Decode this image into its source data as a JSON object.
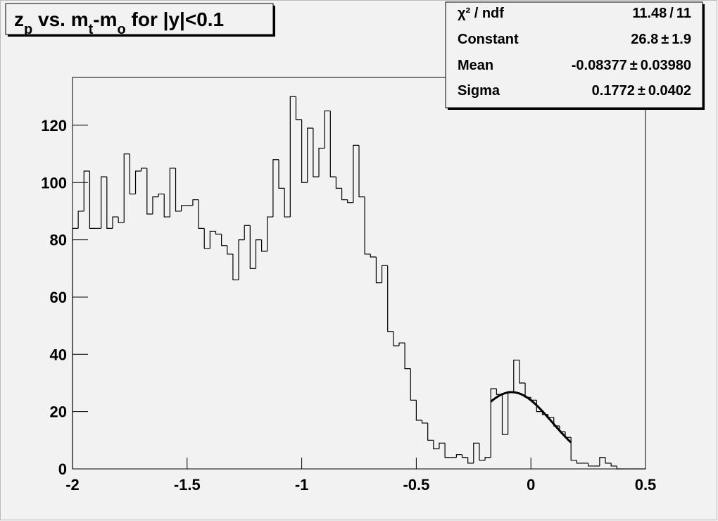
{
  "chart_data": {
    "type": "histogram",
    "title_parts": [
      {
        "text": "z"
      },
      {
        "text": "p",
        "sub": true
      },
      {
        "text": " vs. m"
      },
      {
        "text": "t",
        "sub": true
      },
      {
        "text": "-m"
      },
      {
        "text": "o",
        "sub": true
      },
      {
        "text": " for |y|<0.1"
      }
    ],
    "bins": [
      -2,
      -1.975,
      -1.95,
      -1.925,
      -1.9,
      -1.875,
      -1.85,
      -1.825,
      -1.8,
      -1.775,
      -1.75,
      -1.725,
      -1.7,
      -1.675,
      -1.65,
      -1.625,
      -1.6,
      -1.575,
      -1.55,
      -1.525,
      -1.5,
      -1.475,
      -1.45,
      -1.425,
      -1.4,
      -1.375,
      -1.35,
      -1.325,
      -1.3,
      -1.275,
      -1.25,
      -1.225,
      -1.2,
      -1.175,
      -1.15,
      -1.125,
      -1.1,
      -1.075,
      -1.05,
      -1.025,
      -1,
      -0.975,
      -0.95,
      -0.925,
      -0.9,
      -0.875,
      -0.85,
      -0.825,
      -0.8,
      -0.775,
      -0.75,
      -0.725,
      -0.7,
      -0.675,
      -0.65,
      -0.625,
      -0.6,
      -0.575,
      -0.55,
      -0.525,
      -0.5,
      -0.475,
      -0.45,
      -0.425,
      -0.4,
      -0.375,
      -0.35,
      -0.325,
      -0.3,
      -0.275,
      -0.25,
      -0.225,
      -0.2,
      -0.175,
      -0.15,
      -0.125,
      -0.1,
      -0.075,
      -0.05,
      -0.025,
      0,
      0.025,
      0.05,
      0.075,
      0.1,
      0.125,
      0.15,
      0.175,
      0.2,
      0.225,
      0.25,
      0.275,
      0.3,
      0.325,
      0.35,
      0.375,
      0.4,
      0.425,
      0.45,
      0.475,
      0.5
    ],
    "values": [
      84,
      90,
      104,
      84,
      84,
      102,
      84,
      88,
      86,
      110,
      96,
      104,
      105,
      89,
      95,
      96,
      88,
      105,
      90,
      92,
      92,
      94,
      84,
      77,
      83,
      82,
      78,
      75,
      66,
      80,
      85,
      70,
      80,
      76,
      88,
      108,
      98,
      88,
      130,
      122,
      100,
      119,
      102,
      112,
      125,
      102,
      98,
      94,
      93,
      113,
      95,
      75,
      74,
      65,
      71,
      48,
      43,
      44,
      35,
      24,
      17,
      16,
      10,
      7,
      9,
      4,
      4,
      5,
      4,
      2,
      9,
      3,
      4,
      28,
      26,
      12,
      27,
      38,
      30,
      25,
      24,
      20,
      19,
      18,
      15,
      13,
      11,
      3,
      2,
      2,
      1,
      1,
      4,
      2,
      1,
      0,
      0,
      0,
      0,
      0
    ],
    "color": "#000000",
    "xlim": [
      -2,
      0.5
    ],
    "ylim": [
      0,
      136.7
    ],
    "xticks": [
      -2,
      -1.5,
      -1,
      -0.5,
      0,
      0.5
    ],
    "yticks": [
      0,
      20,
      40,
      60,
      80,
      100,
      120
    ],
    "fit_range": [
      -0.175,
      0.175
    ],
    "stats": [
      {
        "name": "χ² / ndf",
        "value": 11.48,
        "sep": "/",
        "error": 11
      },
      {
        "name": "Constant",
        "value": 26.8,
        "sep": "±",
        "error": 1.9
      },
      {
        "name": "Mean",
        "value": -0.08377,
        "sep": "±",
        "error": {
          "value": 0.0398,
          "label": "0.03980"
        }
      },
      {
        "name": "Sigma",
        "value": 0.1772,
        "sep": "±",
        "error": 0.0402
      }
    ]
  }
}
